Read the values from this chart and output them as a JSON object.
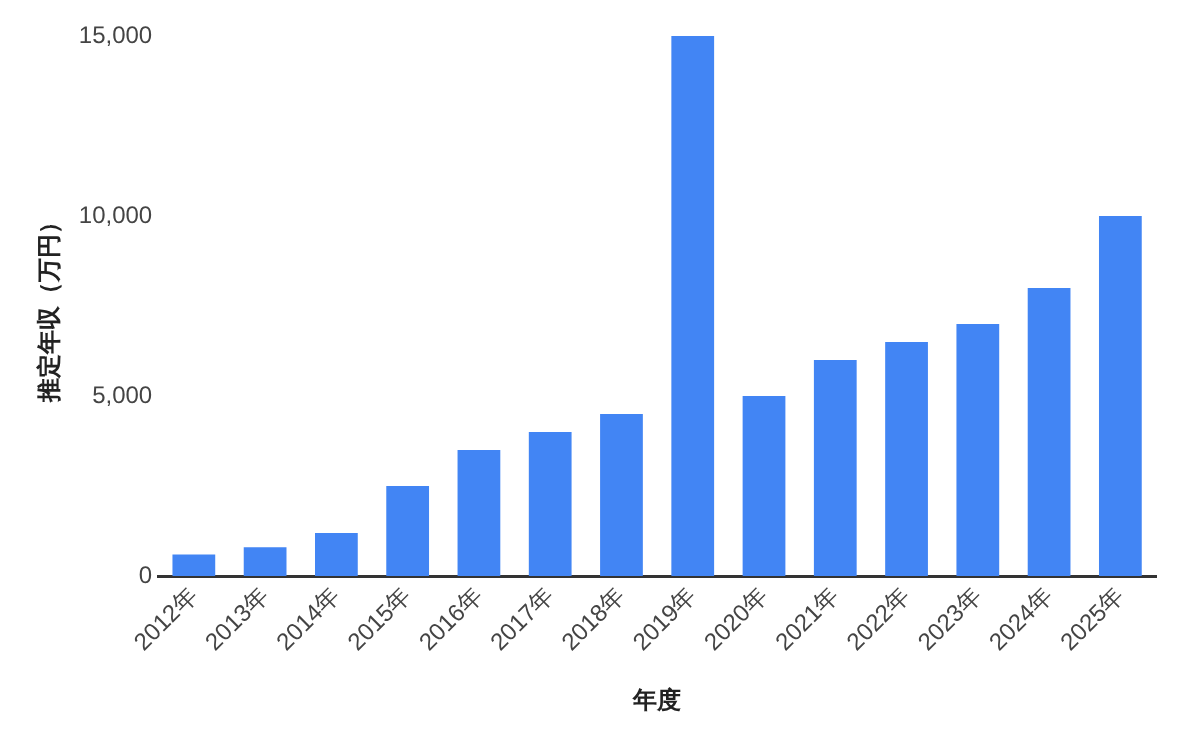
{
  "chart_data": {
    "type": "bar",
    "xlabel": "年度",
    "ylabel": "推定年収（万円）",
    "categories": [
      "2012年",
      "2013年",
      "2014年",
      "2015年",
      "2016年",
      "2017年",
      "2018年",
      "2019年",
      "2020年",
      "2021年",
      "2022年",
      "2023年",
      "2024年",
      "2025年"
    ],
    "values": [
      600,
      800,
      1200,
      2500,
      3500,
      4000,
      4500,
      15000,
      5000,
      6000,
      6500,
      7000,
      8000,
      10000
    ],
    "color": "#4285f4",
    "ylim": [
      0,
      15000
    ],
    "yticks": [
      {
        "value": 0,
        "label": "0"
      },
      {
        "value": 5000,
        "label": "5,000"
      },
      {
        "value": 10000,
        "label": "10,000"
      },
      {
        "value": 15000,
        "label": "15,000"
      }
    ],
    "grid": false,
    "legend": false
  }
}
